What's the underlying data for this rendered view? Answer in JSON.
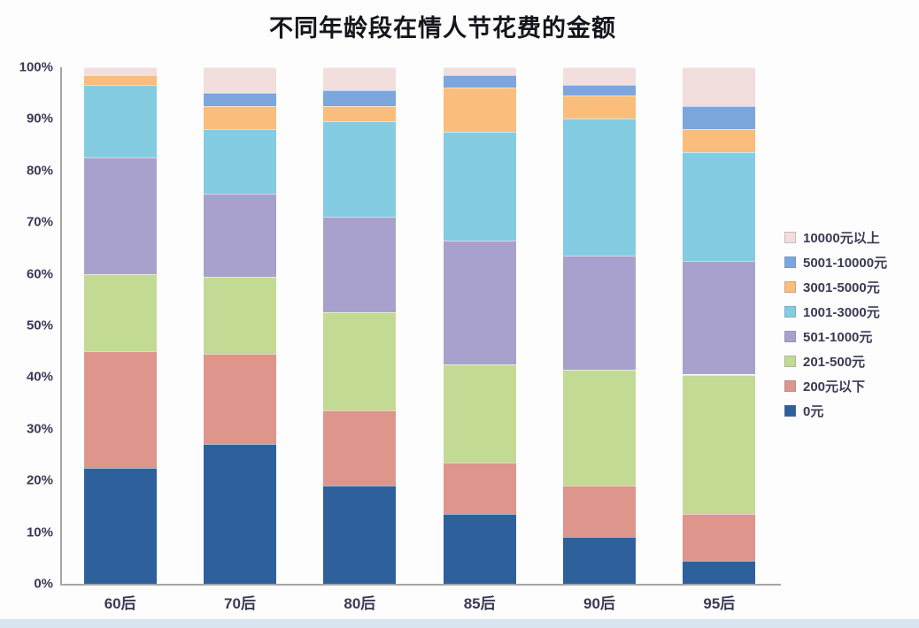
{
  "page": {
    "background": "#fdfdfe",
    "bottom_strip_color": "#d9e4f1"
  },
  "chart_data": {
    "type": "bar",
    "stacked": true,
    "units": "percent",
    "title": "不同年龄段在情人节花费的金额",
    "xlabel": "",
    "ylabel": "",
    "ylim": [
      0,
      100
    ],
    "grid": false,
    "legend_position": "right",
    "axis_color": "#a6a6a6",
    "label_color": "#3a3a55",
    "categories": [
      "60后",
      "70后",
      "80后",
      "85后",
      "90后",
      "95后"
    ],
    "y_ticks": [
      "100%",
      "90%",
      "80%",
      "70%",
      "60%",
      "50%",
      "40%",
      "30%",
      "20%",
      "10%",
      "0%"
    ],
    "series": [
      {
        "name": "0元",
        "color": "#2e619c",
        "values": [
          22.5,
          27,
          19,
          13.5,
          9,
          4.5
        ]
      },
      {
        "name": "200元以下",
        "color": "#dd958c",
        "values": [
          22.5,
          17.5,
          14.5,
          10,
          10,
          9
        ]
      },
      {
        "name": "201-500元",
        "color": "#c2da94",
        "values": [
          15,
          15,
          19,
          19,
          22.5,
          27
        ]
      },
      {
        "name": "501-1000元",
        "color": "#a9a1cd",
        "values": [
          22.5,
          16,
          18.5,
          24,
          22,
          22
        ]
      },
      {
        "name": "1001-3000元",
        "color": "#84cce1",
        "values": [
          14,
          12.5,
          18.5,
          21,
          26.5,
          21
        ]
      },
      {
        "name": "3001-5000元",
        "color": "#fabd7b",
        "values": [
          2,
          4.5,
          3,
          8.5,
          4.5,
          4.5
        ]
      },
      {
        "name": "5001-10000元",
        "color": "#7ca6de",
        "values": [
          0,
          2.5,
          3,
          2.5,
          2,
          4.5
        ]
      },
      {
        "name": "10000元以上",
        "color": "#f2dedd",
        "values": [
          1.5,
          5,
          4.5,
          1.5,
          3.5,
          7.5
        ]
      }
    ],
    "legend_order_top_to_bottom": [
      "10000元以上",
      "5001-10000元",
      "3001-5000元",
      "1001-3000元",
      "501-1000元",
      "201-500元",
      "200元以下",
      "0元"
    ]
  }
}
